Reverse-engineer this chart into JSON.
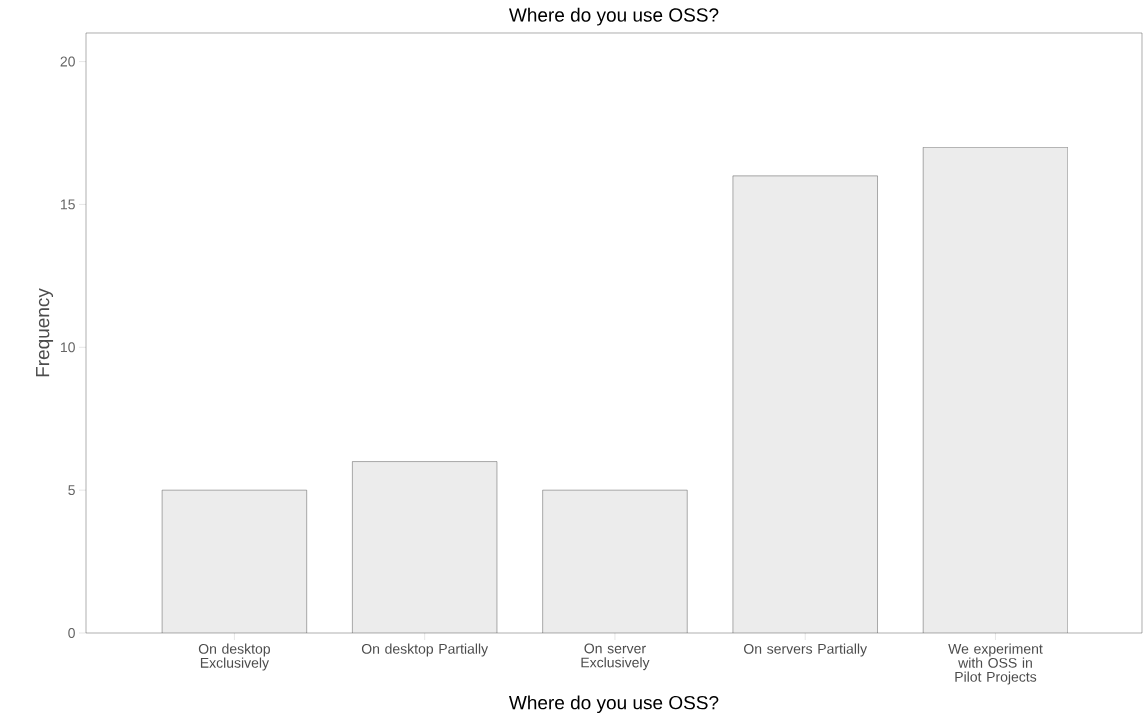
{
  "chart_data": {
    "type": "bar",
    "title": "Where do you use OSS?",
    "xlabel": "Where do you use OSS?",
    "ylabel": "Frequency",
    "categories": [
      "On desktop Exclusively",
      "On desktop Partially",
      "On server Exclusively",
      "On servers Partially",
      "We experiment with OSS in Pilot Projects"
    ],
    "values": [
      5,
      6,
      5,
      16,
      17
    ],
    "color": "#ececec",
    "ylim": [
      0,
      21
    ],
    "yticks": [
      0,
      5,
      10,
      15,
      20
    ]
  }
}
